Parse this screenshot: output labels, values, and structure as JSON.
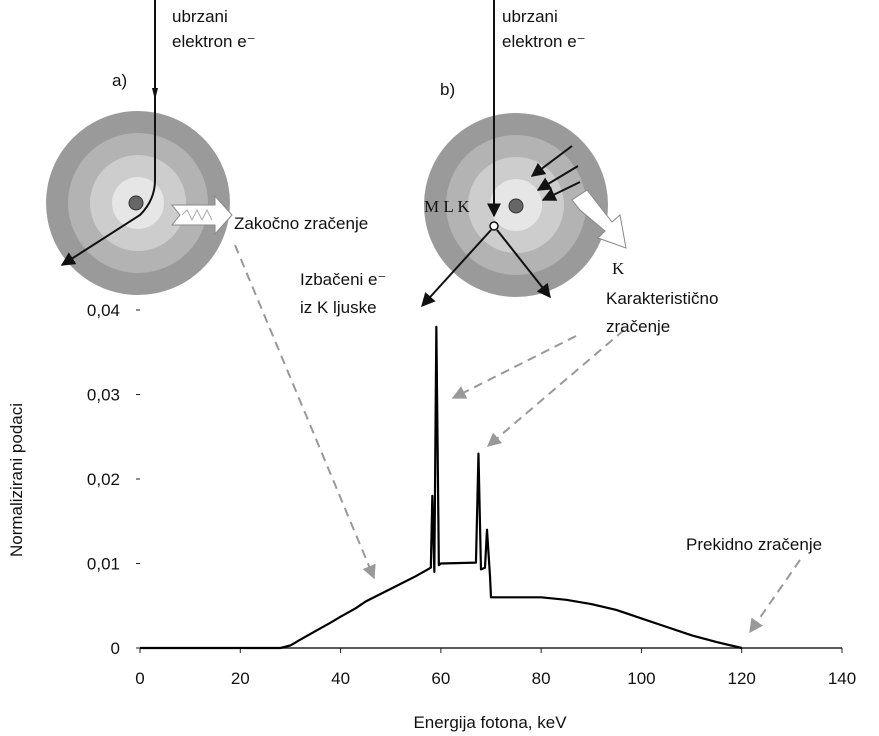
{
  "chart_data": {
    "type": "line",
    "x_label": "Energija fotona, keV",
    "y_label": "Normalizirani podaci",
    "x": [
      0,
      20,
      28,
      30,
      32,
      35,
      38,
      40,
      43,
      45,
      50,
      55,
      58,
      58.3,
      58.7,
      59.1,
      59.6,
      60,
      67,
      67.5,
      68,
      68.8,
      69.2,
      69.8,
      70,
      75,
      80,
      85,
      90,
      95,
      100,
      105,
      110,
      115,
      120
    ],
    "values": [
      0,
      0,
      0,
      0.0003,
      0.001,
      0.002,
      0.003,
      0.0037,
      0.0047,
      0.0055,
      0.007,
      0.0085,
      0.0095,
      0.018,
      0.009,
      0.038,
      0.0098,
      0.01,
      0.0101,
      0.023,
      0.0093,
      0.0095,
      0.014,
      0.0085,
      0.006,
      0.006,
      0.006,
      0.0057,
      0.0052,
      0.0045,
      0.0035,
      0.0025,
      0.0015,
      0.0007,
      0
    ],
    "color": "#000000",
    "xlim": [
      0,
      140
    ],
    "xticks": [
      0,
      20,
      40,
      60,
      80,
      100,
      120,
      140
    ],
    "ylim": [
      0,
      0.04
    ],
    "yticks": [
      0,
      {
        "value": 0.01,
        "label": "0,01"
      },
      {
        "value": 0.02,
        "label": "0,02"
      },
      {
        "value": 0.03,
        "label": "0,03"
      },
      {
        "value": 0.04,
        "label": "0,04"
      }
    ],
    "grid": false,
    "annotations": [
      "ubrzani",
      "elektron e⁻",
      "a)",
      "ubrzani",
      "elektron e⁻",
      "b)",
      "M L K",
      "Zakočno zračenje",
      "K",
      "Izbačeni e⁻",
      "iz K ljuske",
      "Karakteristično",
      "zračenje",
      "Prekidno zračenje"
    ]
  }
}
